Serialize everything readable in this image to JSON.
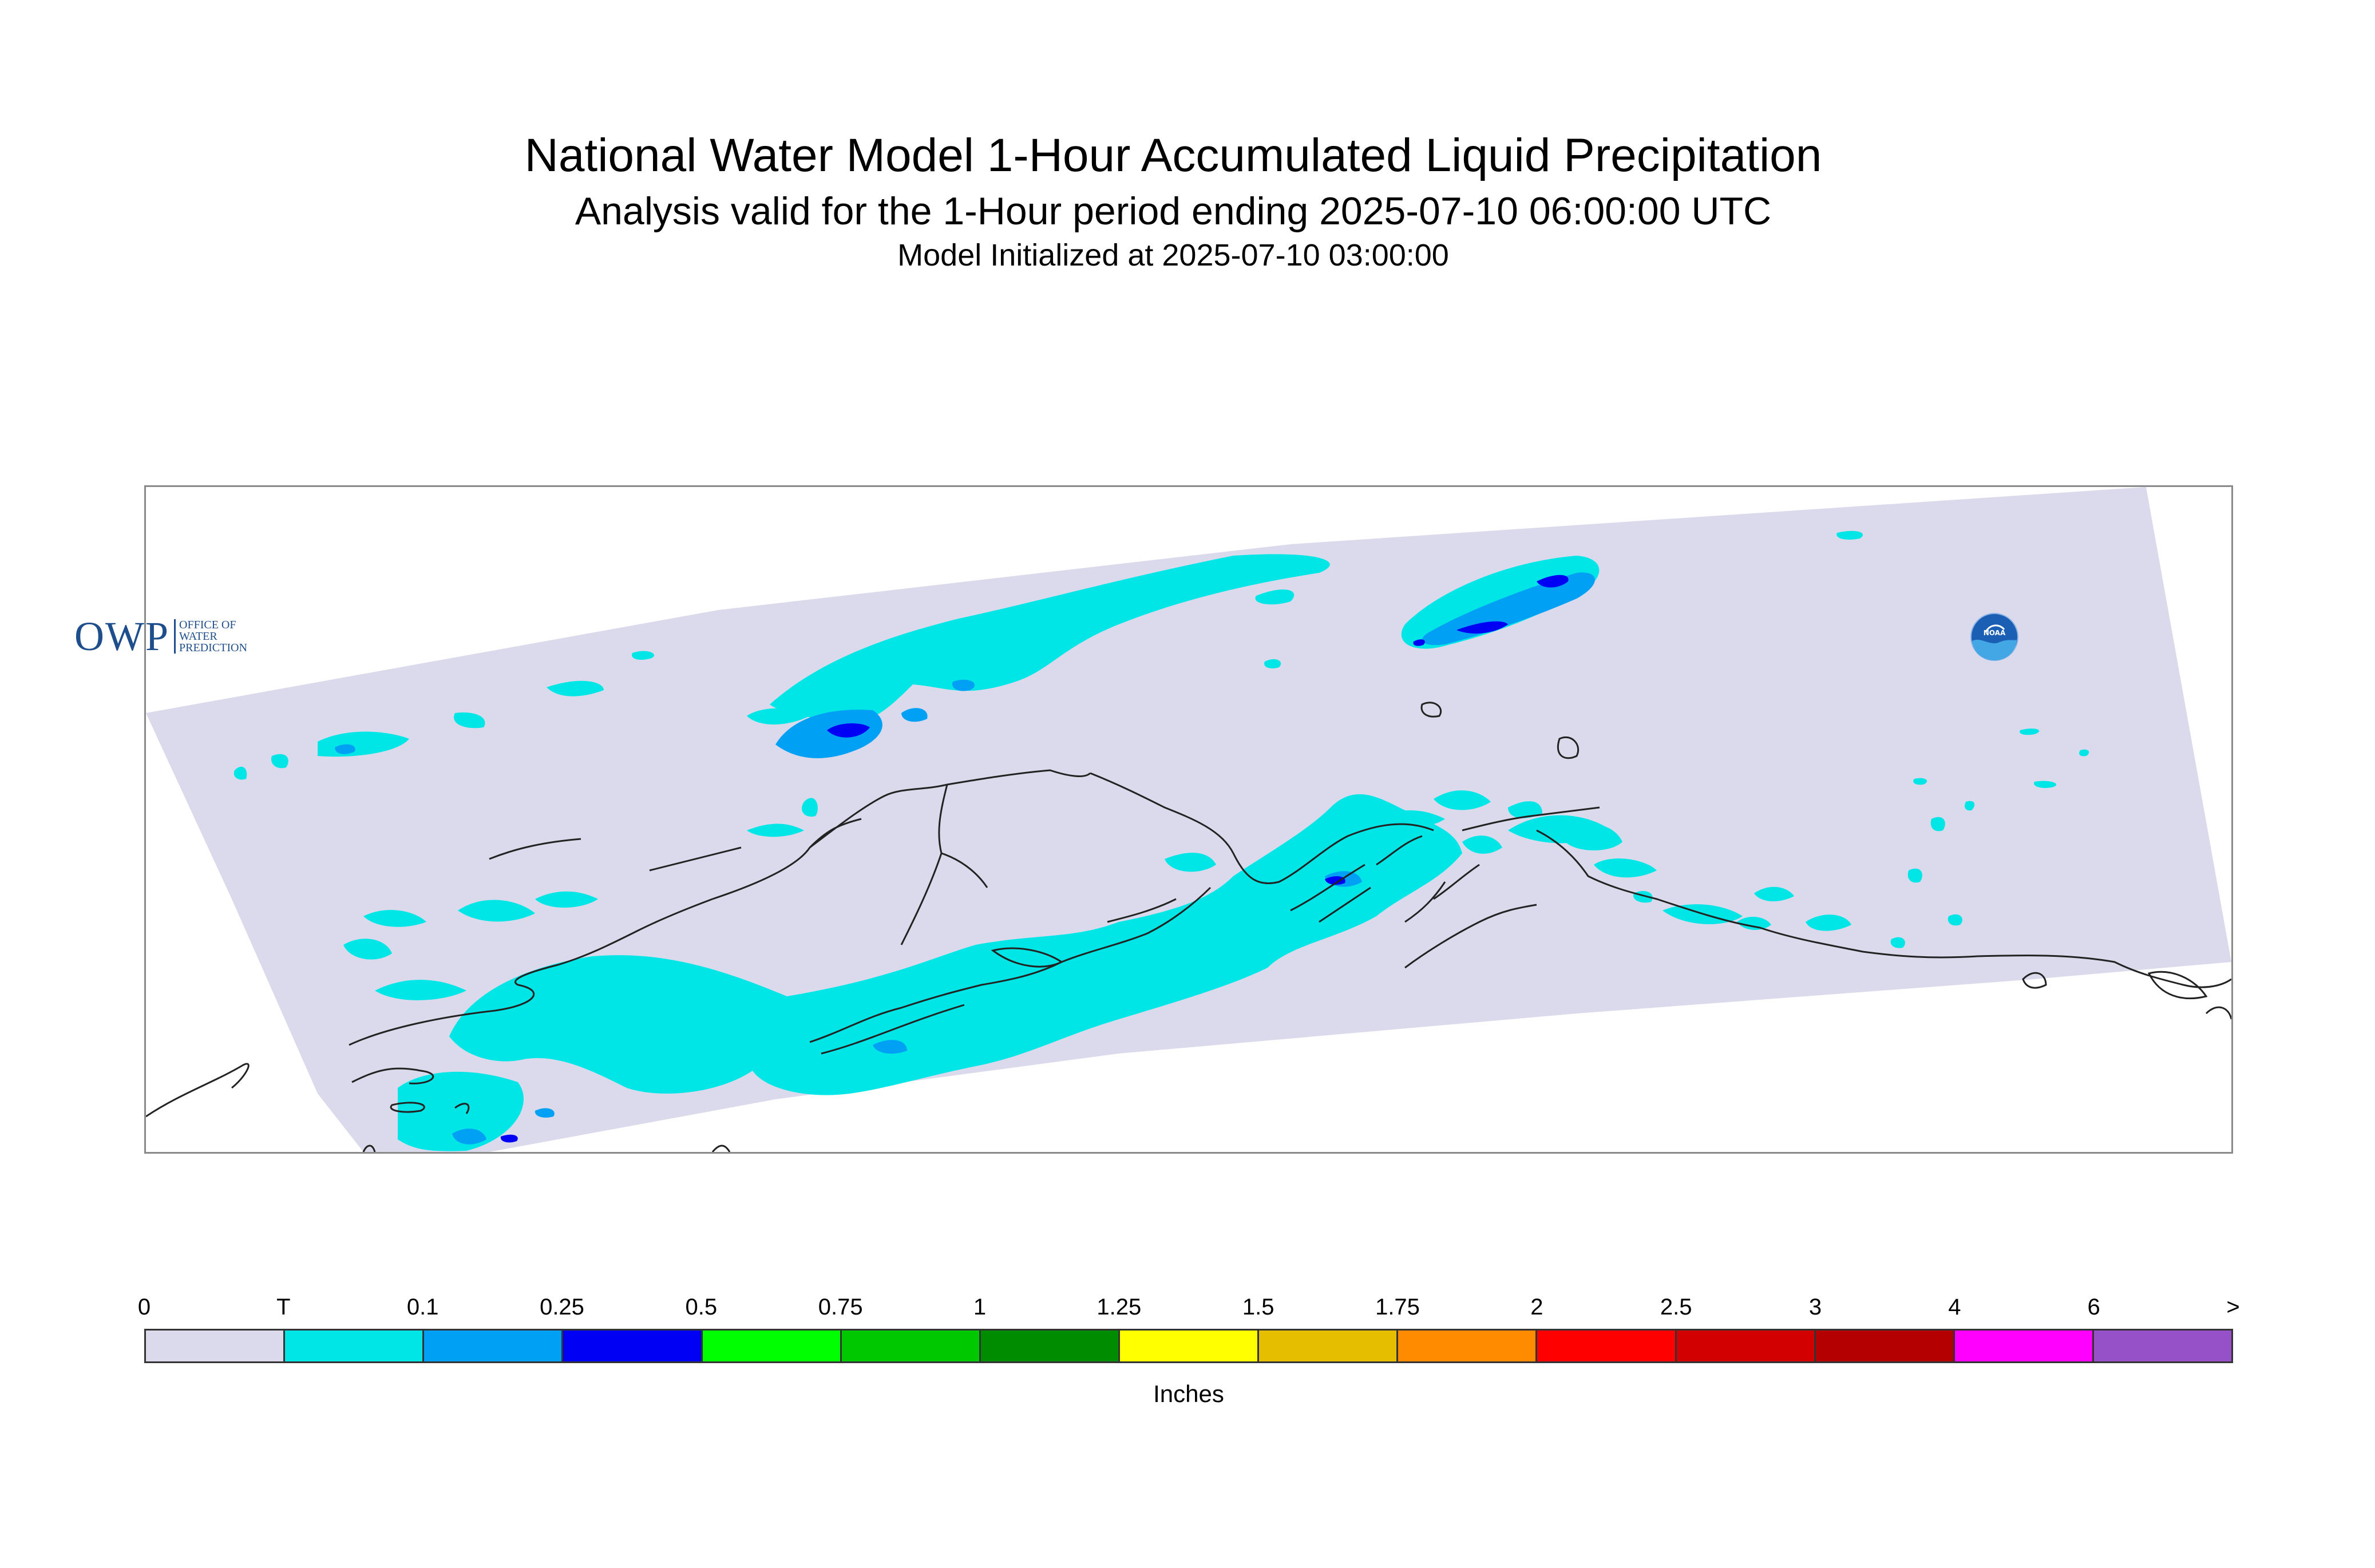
{
  "title": "National Water Model 1-Hour Accumulated Liquid Precipitation",
  "subtitle": "Analysis valid for the 1-Hour period ending 2025-07-10 06:00:00 UTC",
  "init_line": "Model Initialized at 2025-07-10 03:00:00",
  "owp_logo": {
    "mark": "OWP",
    "line1": "OFFICE OF",
    "line2": "WATER",
    "line3": "PREDICTION"
  },
  "noaa_logo": {
    "text": "NOAA",
    "icon": "noaa-seal-icon"
  },
  "legend": {
    "units": "Inches",
    "ticks": [
      "0",
      "T",
      "0.1",
      "0.25",
      "0.5",
      "0.75",
      "1",
      "1.25",
      "1.5",
      "1.75",
      "2",
      "2.5",
      "3",
      "4",
      "6",
      ">"
    ],
    "colors": [
      "#dadaec",
      "#00e6e6",
      "#00a0f5",
      "#0000f5",
      "#00ff00",
      "#00c800",
      "#008c00",
      "#ffff00",
      "#e6be00",
      "#ff8c00",
      "#ff0000",
      "#d20000",
      "#b40000",
      "#ff00ff",
      "#9650c8"
    ]
  },
  "map": {
    "domain_color": "#dadaec",
    "trace_color": "#00e6e6",
    "light_color": "#00a0f5",
    "moderate_color": "#0000f5",
    "coast_color": "#222222"
  }
}
